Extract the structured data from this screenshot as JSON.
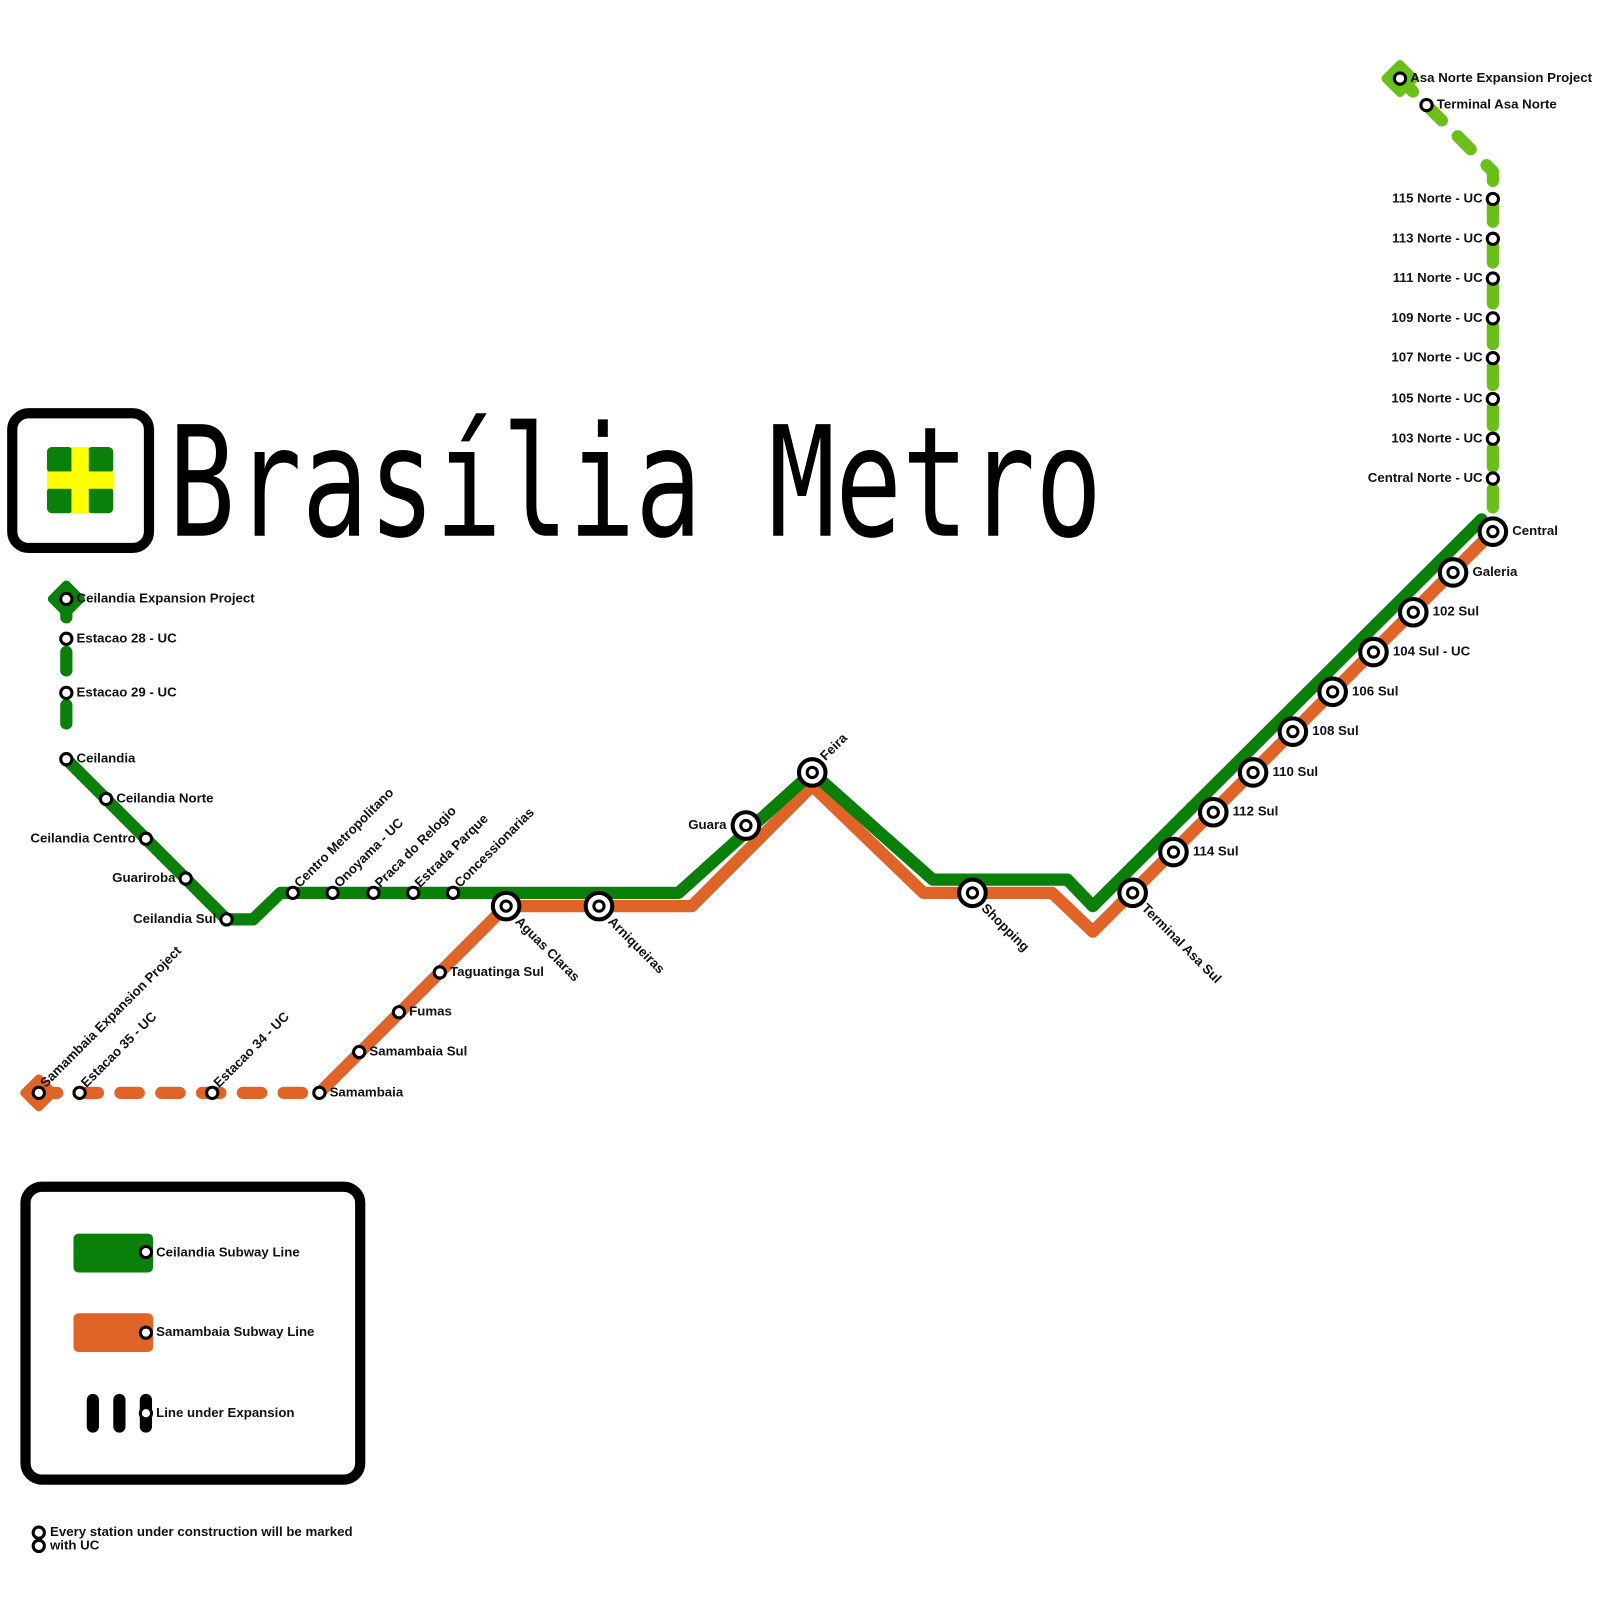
{
  "title": "Brasília Metro",
  "stations": [
    "Ceilandia Expansion Project",
    "Estacao 28 - UC",
    "Estacao 29 - UC",
    "Ceilandia",
    "Ceilandia Norte",
    "Ceilandia Centro",
    "Guariroba",
    "Ceilandia Sul",
    "Centro Metropolitano",
    "Onoyama - UC",
    "Praca do Relogio",
    "Estrada Parque",
    "Concessionarias",
    "Aguas Claras",
    "Arniqueiras",
    "Guara",
    "Feira",
    "Shopping",
    "Terminal Asa Sul",
    "114 Sul",
    "112 Sul",
    "110 Sul",
    "108 Sul",
    "106 Sul",
    "104 Sul - UC",
    "102 Sul",
    "Galeria",
    "Central",
    "Samambaia Expansion Project",
    "Estacao 35 - UC",
    "Estacao 34 - UC",
    "Samambaia",
    "Samambaia Sul",
    "Fumas",
    "Taguatinga Sul",
    "Asa Norte Expansion Project",
    "Terminal Asa Norte",
    "115 Norte - UC",
    "113 Norte - UC",
    "111 Norte - UC",
    "109 Norte - UC",
    "107 Norte - UC",
    "105 Norte - UC",
    "103 Norte - UC",
    "Central Norte - UC"
  ],
  "legend": [
    "Ceilandia Subway Line",
    "Samambaia Subway Line",
    "Line under Expansion"
  ],
  "footnote": [
    "Every station under construction will be marked",
    "with UC"
  ]
}
